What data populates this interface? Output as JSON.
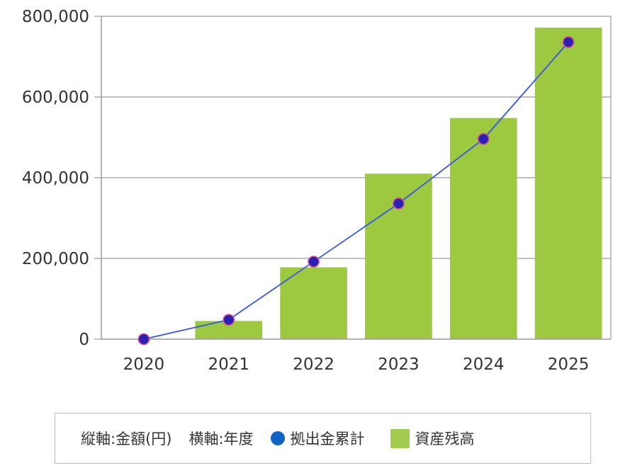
{
  "chart_data": {
    "type": "bar",
    "categories": [
      "2020",
      "2021",
      "2022",
      "2023",
      "2024",
      "2025"
    ],
    "series": [
      {
        "name": "資産残高",
        "type": "bar",
        "color": "#9dc940",
        "values": [
          0,
          45000,
          178000,
          410000,
          548000,
          772000
        ]
      },
      {
        "name": "拠出金累計",
        "type": "line",
        "color": "#3557e6",
        "marker_color": "#2c1fb5",
        "values": [
          0,
          48000,
          192000,
          336000,
          496000,
          736000
        ]
      }
    ],
    "ylim": [
      0,
      800000
    ],
    "yticks": [
      0,
      200000,
      400000,
      600000,
      800000
    ],
    "ytick_labels": [
      "0",
      "200,000",
      "400,000",
      "600,000",
      "800,000"
    ],
    "grid": true
  },
  "legend": {
    "y_axis_note": "縦軸:金額(円)",
    "x_axis_note": "横軸:年度",
    "line_label": "拠出金累計",
    "bar_label": "資産残高"
  }
}
